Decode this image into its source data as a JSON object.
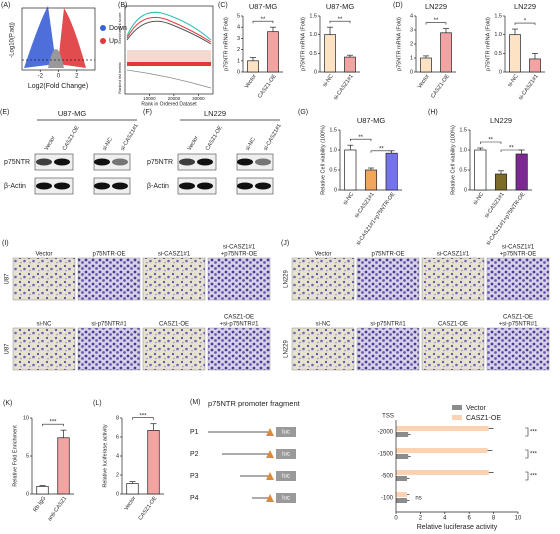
{
  "panels": {
    "A": {
      "label": "(A)",
      "y_label": "-Log10(P.adj)",
      "x_label": "Log2(Fold Change)",
      "xlim": [
        -4,
        4
      ],
      "xticks": [
        -2,
        0,
        2
      ],
      "legend": [
        {
          "name": "Down",
          "color": "#3b5fd6"
        },
        {
          "name": "Up",
          "color": "#e0393b"
        }
      ]
    },
    "B": {
      "label": "(B)",
      "y_label": "Enrichment score",
      "y2_label": "Ranked list metric",
      "x_label": "Rank in Ordered Dataset",
      "xlim": [
        0,
        36000
      ],
      "xticks": [
        10000,
        20000,
        30000
      ]
    },
    "C": {
      "label": "(C)",
      "charts": [
        {
          "title": "U87-MG",
          "y_label": "p75NTR mRNA (Fold)",
          "categories": [
            "Vector",
            "CASZ1-OE"
          ],
          "values": [
            1.0,
            3.6
          ],
          "errors": [
            0.3,
            0.4
          ],
          "colors": [
            "#fde3c4",
            "#f4a3a3"
          ],
          "ylim": [
            0,
            5
          ],
          "yticks": [
            0,
            1,
            2,
            3,
            4,
            5
          ],
          "significance": [
            "**"
          ]
        },
        {
          "title": "U87-MG",
          "y_label": "p75NTR mRNA (Fold)",
          "categories": [
            "si-NC",
            "si-CASZ1#1"
          ],
          "values": [
            1.0,
            0.4
          ],
          "errors": [
            0.2,
            0.05
          ],
          "colors": [
            "#fde3c4",
            "#f4a3a3"
          ],
          "ylim": [
            0,
            1.5
          ],
          "yticks": [
            0,
            0.5,
            {
              "value": 1,
              "label": "1.0"
            },
            1.5
          ],
          "significance": [
            "**"
          ]
        }
      ]
    },
    "D": {
      "label": "(D)",
      "charts": [
        {
          "title": "LN229",
          "y_label": "p75NTR mRNA (Fold)",
          "categories": [
            "Vector",
            "CASZ1-OE"
          ],
          "values": [
            1.0,
            2.8
          ],
          "errors": [
            0.15,
            0.3
          ],
          "colors": [
            "#fde3c4",
            "#f4a3a3"
          ],
          "ylim": [
            0,
            4
          ],
          "yticks": [
            0,
            1,
            2,
            3,
            4
          ],
          "significance": [
            "**"
          ]
        },
        {
          "title": "LN229",
          "y_label": "p75NTR mRNA (Fold)",
          "categories": [
            "si-NC",
            "si-CASZ1#1"
          ],
          "values": [
            1.0,
            0.35
          ],
          "errors": [
            0.15,
            0.15
          ],
          "colors": [
            "#fde3c4",
            "#f4a3a3"
          ],
          "ylim": [
            0,
            1.5
          ],
          "yticks": [
            0,
            0.5,
            {
              "value": 1,
              "label": "1.0"
            },
            1.5
          ],
          "significance": [
            "*"
          ]
        }
      ]
    },
    "E": {
      "label": "(E)",
      "title": "U87-MG",
      "lanes": [
        "Vector",
        "CASZ1-OE",
        "si-NC",
        "si-CASZ1#1"
      ],
      "rows": [
        "p75NTR",
        "β-Actin"
      ]
    },
    "F": {
      "label": "(F)",
      "title": "LN229",
      "lanes": [
        "Vector",
        "CASZ1-OE",
        "si-NC",
        "si-CASZ1#1"
      ],
      "rows": [
        "p75NTR",
        "β-Actin"
      ]
    },
    "G": {
      "label": "(G)",
      "title": "U87-MG",
      "y_label": "Relative Cell viability (100%)",
      "categories": [
        "si-NC",
        "si-CASZ1#1",
        "si-CASZ1#1+p75NTR-OE"
      ],
      "values": [
        1.0,
        0.5,
        0.92
      ],
      "errors": [
        0.12,
        0.05,
        0.06
      ],
      "colors": [
        "#ffffff",
        "#f2a65a",
        "#7474e8"
      ],
      "ylim": [
        0,
        1.5
      ],
      "yticks": [
        0,
        0.5,
        {
          "value": 1,
          "label": "1.0"
        },
        1.5
      ],
      "significance": [
        "**",
        "**"
      ]
    },
    "H": {
      "label": "(H)",
      "title": "LN229",
      "y_label": "Relative Cell viability (100%)",
      "categories": [
        "si-NC",
        "si-CASZ1#1",
        "si-CASZ1#1+p75NTR-OE"
      ],
      "values": [
        1.0,
        0.4,
        0.9
      ],
      "errors": [
        0.05,
        0.08,
        0.1
      ],
      "colors": [
        "#ffffff",
        "#7d6b2a",
        "#7a2a90"
      ],
      "ylim": [
        0,
        1.5
      ],
      "yticks": [
        0,
        0.5,
        {
          "value": 1,
          "label": "1.0"
        },
        1.5
      ],
      "significance": [
        "**",
        "**"
      ]
    },
    "I": {
      "label": "(I)",
      "row_label": "U87",
      "images": [
        [
          [
            "Vector"
          ],
          [
            "p75NTR-OE"
          ],
          [
            "si-CASZ1#1"
          ],
          [
            "si-CASZ1#1",
            "+p75NTR-OE"
          ]
        ],
        [
          [
            "si-NC"
          ],
          [
            "si-p75NTR#1"
          ],
          [
            "CASZ1-OE"
          ],
          [
            "CASZ1-OE",
            "+si-p75NTR#1"
          ]
        ]
      ]
    },
    "J": {
      "label": "(J)",
      "row_label": "LN229",
      "images": [
        [
          [
            "Vector"
          ],
          [
            "p75NTR-OE"
          ],
          [
            "si-CASZ1#1"
          ],
          [
            "si-CASZ1#1",
            "+p75NTR-OE"
          ]
        ],
        [
          [
            "si-NC"
          ],
          [
            "si-p75NTR#1"
          ],
          [
            "CASZ1-OE"
          ],
          [
            "CASZ1-OE",
            "+si-p75NTR#1"
          ]
        ]
      ]
    },
    "K": {
      "label": "(K)",
      "y_label": "Relative Fold Enrichment",
      "categories": [
        "Rb IgG",
        "anti-CASZ1"
      ],
      "values": [
        1.0,
        7.4
      ],
      "errors": [
        0.1,
        1.0
      ],
      "colors": [
        "#ffffff",
        "#f4a3a3"
      ],
      "ylim": [
        0,
        10
      ],
      "yticks": [
        0,
        5,
        10
      ],
      "significance": [
        "***"
      ]
    },
    "L": {
      "label": "(L)",
      "y_label": "Relative luciferase activity",
      "categories": [
        "Vector",
        "CASZ1-OE"
      ],
      "values": [
        1.1,
        6.7
      ],
      "errors": [
        0.2,
        0.7
      ],
      "colors": [
        "#ffffff",
        "#f4a3a3"
      ],
      "ylim": [
        0,
        8
      ],
      "yticks": [
        0,
        2,
        4,
        6,
        8
      ],
      "significance": [
        "***"
      ]
    },
    "M": {
      "label": "(M)",
      "title": "p75NTR promoter fragment",
      "tss": "TSS",
      "luc": "luc",
      "fragments": [
        "P1",
        "P2",
        "P3",
        "P4"
      ],
      "positions": [
        -2000,
        -1500,
        -500,
        -100
      ],
      "series": [
        {
          "name": "Vector",
          "color": "#8c8c8c",
          "values": [
            1.0,
            1.0,
            0.9,
            0.9
          ],
          "errors": [
            0.2,
            0.2,
            0.2,
            0.2
          ]
        },
        {
          "name": "CASZ1-OE",
          "color": "#fbd3b3",
          "values": [
            7.6,
            7.5,
            7.6,
            0.9
          ],
          "errors": [
            0.4,
            0.4,
            0.4,
            0.2
          ]
        }
      ],
      "xlim": [
        0,
        10
      ],
      "xticks": [
        0,
        2,
        4,
        6,
        8,
        10
      ],
      "x_label": "Relative luciferase activity",
      "significance": [
        "***",
        "***",
        "***",
        "ns"
      ]
    }
  }
}
